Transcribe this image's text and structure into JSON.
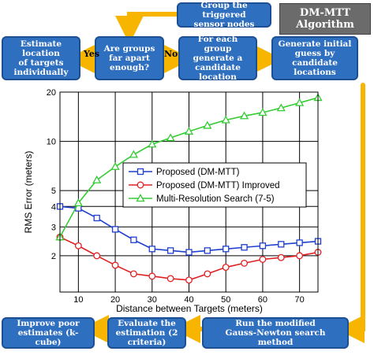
{
  "title": "DM-MTT\nAlgorithm",
  "boxes": {
    "group": "Group the triggered\nsensor nodes",
    "far_apart": "Are groups\nfar apart\nenough?",
    "estimate_location": "Estimate location\nof targets\nindividually",
    "candidate": "For each group\ngenerate a\ncandidate location",
    "initial_guess": "Generate initial\nguess by\ncandidate locations",
    "gauss_newton": "Run the modified\nGauss-Newton search method",
    "evaluate": "Evaluate the\nestimation (2 criteria)",
    "improve": "Improve poor\nestimates (k-cube)"
  },
  "labels": {
    "yes": "Yes",
    "no": "No"
  },
  "colors": {
    "box": "#2f6fbf",
    "arrow": "#f7b500",
    "title_box": "#6b6b6b"
  },
  "chart_data": {
    "type": "line",
    "xlabel": "Distance between Targets (meters)",
    "ylabel": "RMS Error (meters)",
    "xlim": [
      5,
      75
    ],
    "ylim": [
      1.2,
      20
    ],
    "yscale": "log",
    "x_ticks": [
      10,
      20,
      30,
      40,
      50,
      60,
      70
    ],
    "y_ticks": [
      2,
      3,
      4,
      5,
      10,
      20
    ],
    "grid": true,
    "legend_position": "center-right",
    "x": [
      5,
      10,
      15,
      20,
      25,
      30,
      35,
      40,
      45,
      50,
      55,
      60,
      65,
      70,
      75
    ],
    "series": [
      {
        "name": "Proposed (DM-MTT)",
        "color": "#1f3fd0",
        "marker": "square",
        "values": [
          4.0,
          3.9,
          3.4,
          2.9,
          2.5,
          2.2,
          2.15,
          2.1,
          2.15,
          2.2,
          2.25,
          2.3,
          2.35,
          2.4,
          2.45
        ]
      },
      {
        "name": "Proposed (DM-MTT) Improved",
        "color": "#e02020",
        "marker": "circle",
        "values": [
          2.6,
          2.3,
          2.0,
          1.75,
          1.55,
          1.5,
          1.45,
          1.42,
          1.55,
          1.7,
          1.8,
          1.9,
          1.95,
          2.0,
          2.1
        ]
      },
      {
        "name": "Multi-Resolution Search (7-5)",
        "color": "#33cc33",
        "marker": "triangle",
        "values": [
          2.6,
          4.2,
          5.8,
          7.0,
          8.3,
          9.6,
          10.5,
          11.5,
          12.5,
          13.5,
          14.3,
          15.0,
          16.0,
          17.2,
          18.5
        ]
      }
    ]
  }
}
